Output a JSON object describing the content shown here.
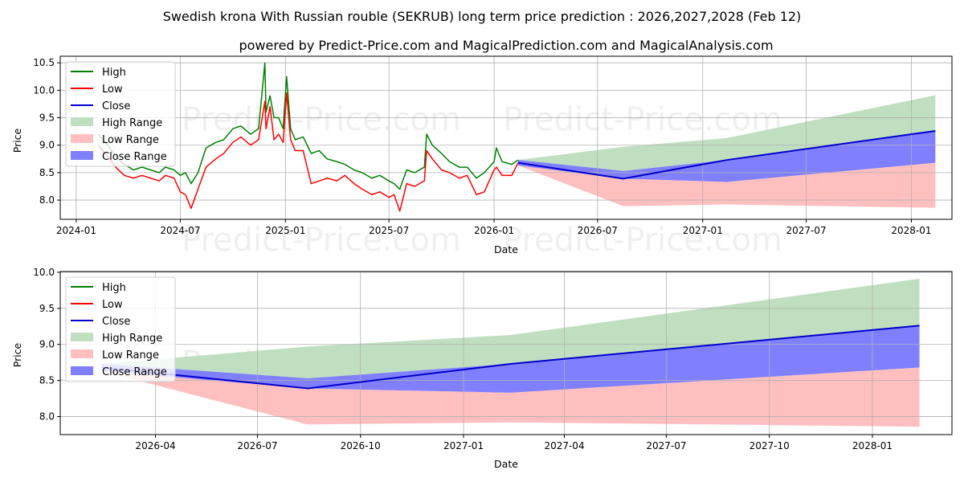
{
  "title": "Swedish krona With Russian rouble (SEKRUB) long term price prediction : 2026,2027,2028 (Feb 12)",
  "subtitle": "powered by Predict-Price.com and MagicalPrediction.com and MagicalAnalysis.com",
  "watermark": "Predict-Price.com",
  "colors": {
    "high": "#008000",
    "low": "#ff0000",
    "close": "#0000cc",
    "high_range": "#c0dfc0",
    "low_range": "#ffbfbf",
    "close_range": "#8080ff"
  },
  "chart_data": [
    {
      "type": "line",
      "id": "history",
      "xlabel": "Date",
      "ylabel": "Price",
      "xlim": [
        "2023-12-04",
        "2028-03-12"
      ],
      "ylim": [
        7.65,
        10.62
      ],
      "xticks": [
        {
          "date": "2024-01-01",
          "label": "2024-01"
        },
        {
          "date": "2024-07-01",
          "label": "2024-07"
        },
        {
          "date": "2025-01-01",
          "label": "2025-01"
        },
        {
          "date": "2025-07-01",
          "label": "2025-07"
        },
        {
          "date": "2026-01-01",
          "label": "2026-01"
        },
        {
          "date": "2026-07-01",
          "label": "2026-07"
        },
        {
          "date": "2027-01-01",
          "label": "2027-01"
        },
        {
          "date": "2027-07-01",
          "label": "2027-07"
        },
        {
          "date": "2028-01-01",
          "label": "2028-01"
        }
      ],
      "yticks": [
        8.0,
        8.5,
        9.0,
        9.5,
        10.0,
        10.5
      ],
      "legend": [
        "High",
        "Low",
        "Close",
        "High Range",
        "Low Range",
        "Close Range"
      ],
      "legend_position": "top-left",
      "grid": true,
      "series": [
        {
          "name": "High",
          "x": [
            "2024-02-08",
            "2024-02-25",
            "2024-03-10",
            "2024-03-25",
            "2024-04-10",
            "2024-04-25",
            "2024-05-10",
            "2024-05-25",
            "2024-06-05",
            "2024-06-20",
            "2024-07-01",
            "2024-07-10",
            "2024-07-20",
            "2024-08-01",
            "2024-08-15",
            "2024-09-01",
            "2024-09-15",
            "2024-10-01",
            "2024-10-15",
            "2024-11-01",
            "2024-11-15",
            "2024-11-26",
            "2024-11-28",
            "2024-12-05",
            "2024-12-12",
            "2024-12-20",
            "2024-12-28",
            "2025-01-03",
            "2025-01-10",
            "2025-01-18",
            "2025-02-01",
            "2025-02-15",
            "2025-03-01",
            "2025-03-15",
            "2025-04-01",
            "2025-04-15",
            "2025-05-01",
            "2025-05-15",
            "2025-06-01",
            "2025-06-15",
            "2025-07-01",
            "2025-07-10",
            "2025-07-20",
            "2025-08-01",
            "2025-08-15",
            "2025-09-01",
            "2025-09-05",
            "2025-09-15",
            "2025-10-01",
            "2025-10-15",
            "2025-11-01",
            "2025-11-15",
            "2025-12-01",
            "2025-12-15",
            "2026-01-01",
            "2026-01-05",
            "2026-01-15",
            "2026-02-01",
            "2026-02-12"
          ],
          "values": [
            9.2,
            9.0,
            8.8,
            8.65,
            8.55,
            8.6,
            8.55,
            8.5,
            8.6,
            8.55,
            8.45,
            8.5,
            8.3,
            8.5,
            8.95,
            9.05,
            9.1,
            9.3,
            9.35,
            9.2,
            9.3,
            10.5,
            9.6,
            9.9,
            9.5,
            9.5,
            9.3,
            10.25,
            9.3,
            9.1,
            9.15,
            8.85,
            8.9,
            8.75,
            8.7,
            8.65,
            8.55,
            8.5,
            8.4,
            8.45,
            8.35,
            8.3,
            8.2,
            8.55,
            8.5,
            8.6,
            9.2,
            9.0,
            8.85,
            8.7,
            8.6,
            8.6,
            8.4,
            8.5,
            8.7,
            8.95,
            8.7,
            8.65,
            8.73
          ]
        },
        {
          "name": "Low",
          "x": [
            "2024-02-08",
            "2024-02-25",
            "2024-03-10",
            "2024-03-25",
            "2024-04-10",
            "2024-04-25",
            "2024-05-10",
            "2024-05-25",
            "2024-06-05",
            "2024-06-20",
            "2024-07-01",
            "2024-07-10",
            "2024-07-20",
            "2024-08-01",
            "2024-08-15",
            "2024-09-01",
            "2024-09-15",
            "2024-10-01",
            "2024-10-15",
            "2024-11-01",
            "2024-11-15",
            "2024-11-26",
            "2024-11-28",
            "2024-12-05",
            "2024-12-12",
            "2024-12-20",
            "2024-12-28",
            "2025-01-03",
            "2025-01-10",
            "2025-01-18",
            "2025-02-01",
            "2025-02-15",
            "2025-03-01",
            "2025-03-15",
            "2025-04-01",
            "2025-04-15",
            "2025-05-01",
            "2025-05-15",
            "2025-06-01",
            "2025-06-15",
            "2025-07-01",
            "2025-07-10",
            "2025-07-20",
            "2025-08-01",
            "2025-08-15",
            "2025-09-01",
            "2025-09-05",
            "2025-09-15",
            "2025-10-01",
            "2025-10-15",
            "2025-11-01",
            "2025-11-15",
            "2025-12-01",
            "2025-12-15",
            "2026-01-01",
            "2026-01-05",
            "2026-01-15",
            "2026-02-01",
            "2026-02-12"
          ],
          "values": [
            9.0,
            8.8,
            8.6,
            8.45,
            8.4,
            8.45,
            8.4,
            8.35,
            8.45,
            8.4,
            8.15,
            8.1,
            7.85,
            8.2,
            8.6,
            8.75,
            8.85,
            9.05,
            9.15,
            9.0,
            9.1,
            9.8,
            9.3,
            9.7,
            9.1,
            9.2,
            9.05,
            9.95,
            9.1,
            8.9,
            8.9,
            8.3,
            8.35,
            8.4,
            8.35,
            8.45,
            8.3,
            8.2,
            8.1,
            8.15,
            8.05,
            8.1,
            7.8,
            8.3,
            8.25,
            8.35,
            8.9,
            8.75,
            8.55,
            8.5,
            8.4,
            8.45,
            8.1,
            8.15,
            8.55,
            8.6,
            8.45,
            8.45,
            8.68
          ]
        },
        {
          "name": "Close",
          "x": [
            "2026-02-12",
            "2026-08-15",
            "2027-02-12",
            "2028-02-12"
          ],
          "values": [
            8.68,
            8.39,
            8.73,
            9.26
          ]
        }
      ],
      "ranges": [
        {
          "name": "High Range",
          "x": [
            "2026-02-12",
            "2026-08-15",
            "2027-02-12",
            "2028-02-12"
          ],
          "upper": [
            8.73,
            8.97,
            9.13,
            9.91
          ],
          "lower": [
            8.68,
            8.39,
            8.73,
            9.26
          ]
        },
        {
          "name": "Low Range",
          "x": [
            "2026-02-12",
            "2026-08-15",
            "2027-02-12",
            "2028-02-12"
          ],
          "upper": [
            8.68,
            8.39,
            8.33,
            8.68
          ],
          "lower": [
            8.63,
            7.89,
            7.92,
            7.86
          ]
        },
        {
          "name": "Close Range",
          "x": [
            "2026-02-12",
            "2026-08-15",
            "2027-02-12",
            "2028-02-12"
          ],
          "upper": [
            8.73,
            8.53,
            8.73,
            9.26
          ],
          "lower": [
            8.63,
            8.39,
            8.33,
            8.68
          ]
        }
      ]
    },
    {
      "type": "line",
      "id": "forecast",
      "xlabel": "Date",
      "ylabel": "Price",
      "xlim": [
        "2026-01-06",
        "2028-03-12"
      ],
      "ylim": [
        7.75,
        10.01
      ],
      "xticks": [
        {
          "date": "2026-04-01",
          "label": "2026-04"
        },
        {
          "date": "2026-07-01",
          "label": "2026-07"
        },
        {
          "date": "2026-10-01",
          "label": "2026-10"
        },
        {
          "date": "2027-01-01",
          "label": "2027-01"
        },
        {
          "date": "2027-04-01",
          "label": "2027-04"
        },
        {
          "date": "2027-07-01",
          "label": "2027-07"
        },
        {
          "date": "2027-10-01",
          "label": "2027-10"
        },
        {
          "date": "2028-01-01",
          "label": "2028-01"
        }
      ],
      "yticks": [
        8.0,
        8.5,
        9.0,
        9.5,
        10.0
      ],
      "legend": [
        "High",
        "Low",
        "Close",
        "High Range",
        "Low Range",
        "Close Range"
      ],
      "legend_position": "top-left",
      "grid": true,
      "series": [
        {
          "name": "Close",
          "x": [
            "2026-02-12",
            "2026-08-15",
            "2027-02-12",
            "2028-02-12"
          ],
          "values": [
            8.68,
            8.39,
            8.73,
            9.26
          ]
        }
      ],
      "ranges": [
        {
          "name": "High Range",
          "x": [
            "2026-02-12",
            "2026-08-15",
            "2027-02-12",
            "2028-02-12"
          ],
          "upper": [
            8.73,
            8.97,
            9.13,
            9.91
          ],
          "lower": [
            8.68,
            8.39,
            8.73,
            9.26
          ]
        },
        {
          "name": "Low Range",
          "x": [
            "2026-02-12",
            "2026-08-15",
            "2027-02-12",
            "2028-02-12"
          ],
          "upper": [
            8.68,
            8.39,
            8.33,
            8.68
          ],
          "lower": [
            8.63,
            7.89,
            7.92,
            7.86
          ]
        },
        {
          "name": "Close Range",
          "x": [
            "2026-02-12",
            "2026-08-15",
            "2027-02-12",
            "2028-02-12"
          ],
          "upper": [
            8.73,
            8.53,
            8.73,
            9.26
          ],
          "lower": [
            8.63,
            8.39,
            8.33,
            8.68
          ]
        }
      ]
    }
  ]
}
